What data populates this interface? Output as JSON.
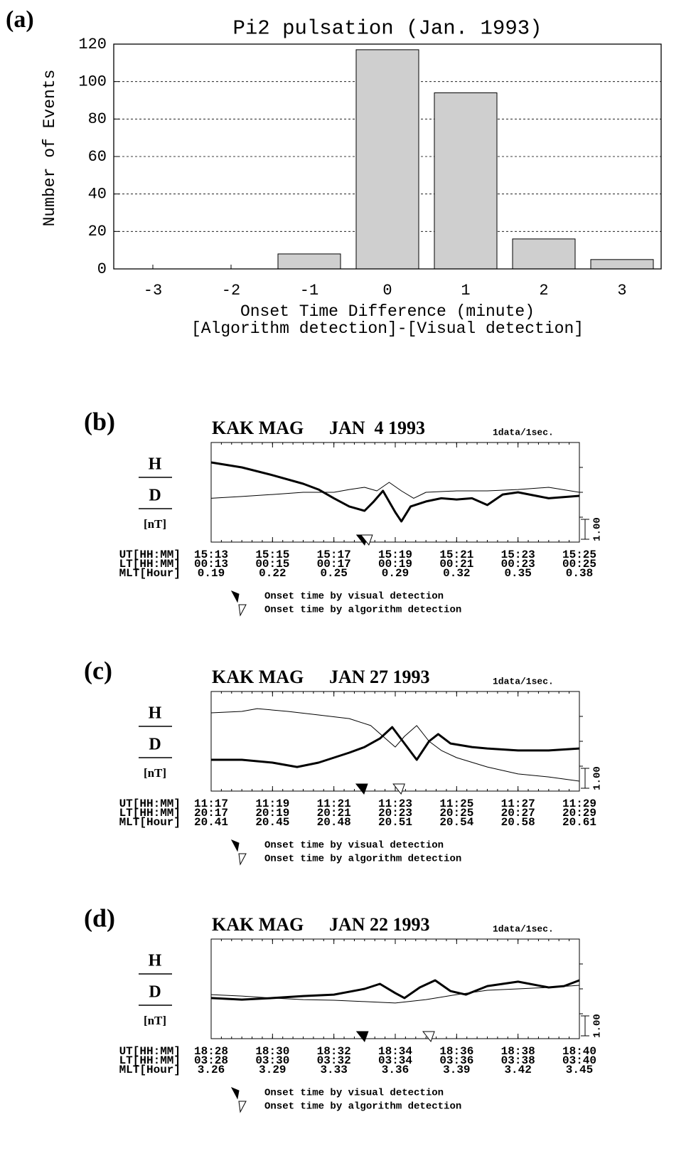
{
  "chart_data": [
    {
      "type": "bar",
      "panel_label": "(a)",
      "title": "Pi2 pulsation (Jan. 1993)",
      "ylabel": "Number of Events",
      "xlabel": [
        "Onset Time Difference (minute)",
        "[Algorithm detection]-[Visual detection]"
      ],
      "categories": [
        -3,
        -2,
        -1,
        0,
        1,
        2,
        3
      ],
      "values": [
        0,
        0,
        8,
        117,
        94,
        16,
        5
      ],
      "color": "#cfcfcf",
      "ylim": [
        0,
        120
      ],
      "yticks": [
        0,
        20,
        40,
        60,
        80,
        100,
        120
      ],
      "grid": true
    },
    {
      "type": "line",
      "panel_label": "(b)",
      "station": "KAK MAG",
      "date": "JAN  4 1993",
      "rate": "1data/1sec.",
      "unit": "[nT]",
      "xlim": [
        0,
        12
      ],
      "ylim": [
        0,
        5
      ],
      "xticks": [
        0,
        2,
        4,
        6,
        8,
        10,
        12
      ],
      "scale_bar": {
        "value": 1,
        "label": "1.00"
      },
      "series": [
        {
          "name": "H",
          "color": "#000000",
          "width": 3,
          "x": [
            0,
            1,
            2,
            3,
            3.5,
            4,
            4.5,
            5,
            5.3,
            5.6,
            6,
            6.2,
            6.5,
            7,
            7.5,
            8,
            8.5,
            9,
            9.5,
            10,
            11,
            12
          ],
          "values": [
            4.0,
            3.75,
            3.36,
            2.93,
            2.64,
            2.2,
            1.79,
            1.57,
            2.04,
            2.57,
            1.5,
            1.04,
            1.79,
            2.04,
            2.2,
            2.14,
            2.2,
            1.86,
            2.39,
            2.5,
            2.2,
            2.32
          ]
        },
        {
          "name": "D",
          "color": "#000000",
          "width": 1,
          "x": [
            0,
            1,
            2,
            3,
            4,
            4.5,
            5,
            5.4,
            5.8,
            6.2,
            6.6,
            7,
            8,
            9,
            10,
            11,
            12
          ],
          "values": [
            2.2,
            2.29,
            2.39,
            2.5,
            2.5,
            2.64,
            2.75,
            2.57,
            3.0,
            2.57,
            2.2,
            2.5,
            2.57,
            2.57,
            2.64,
            2.75,
            2.5
          ]
        }
      ],
      "time_rows": [
        {
          "name": "UT[HH:MM]",
          "labels": [
            "15:13",
            "15:15",
            "15:17",
            "15:19",
            "15:21",
            "15:23",
            "15:25"
          ]
        },
        {
          "name": "LT[HH:MM]",
          "labels": [
            "00:13",
            "00:15",
            "00:17",
            "00:19",
            "00:21",
            "00:23",
            "00:25"
          ]
        },
        {
          "name": "MLT[Hour]",
          "labels": [
            0.19,
            0.22,
            0.25,
            0.29,
            0.32,
            0.35,
            0.38
          ]
        }
      ],
      "markers": [
        {
          "name": "Onset time by visual detection",
          "x": 4.93,
          "style": "filled"
        },
        {
          "name": "Onset time by algorithm detection",
          "x": 5.07,
          "style": "open"
        }
      ]
    },
    {
      "type": "line",
      "panel_label": "(c)",
      "station": "KAK MAG",
      "date": "JAN 27 1993",
      "rate": "1data/1sec.",
      "unit": "[nT]",
      "xlim": [
        0,
        12
      ],
      "ylim": [
        0,
        5
      ],
      "xticks": [
        0,
        2,
        4,
        6,
        8,
        10,
        12
      ],
      "scale_bar": {
        "value": 1,
        "label": "1.00"
      },
      "series": [
        {
          "name": "H",
          "color": "#000000",
          "width": 3,
          "x": [
            0,
            1,
            2,
            2.8,
            3.5,
            4,
            4.5,
            5,
            5.5,
            5.9,
            6.3,
            6.7,
            7.1,
            7.4,
            7.8,
            8.5,
            9,
            10,
            11,
            12
          ],
          "values": [
            1.57,
            1.57,
            1.43,
            1.21,
            1.43,
            1.68,
            1.93,
            2.21,
            2.64,
            3.21,
            2.39,
            1.57,
            2.5,
            2.86,
            2.39,
            2.21,
            2.14,
            2.04,
            2.04,
            2.14
          ]
        },
        {
          "name": "D",
          "color": "#000000",
          "width": 1,
          "x": [
            0,
            1,
            1.5,
            2.5,
            3.5,
            4.5,
            5.2,
            5.6,
            6.0,
            6.3,
            6.7,
            7.1,
            7.5,
            8,
            9,
            10,
            11,
            12
          ],
          "values": [
            3.93,
            4.0,
            4.14,
            4.0,
            3.82,
            3.64,
            3.29,
            2.75,
            2.21,
            2.75,
            3.29,
            2.5,
            2.04,
            1.68,
            1.21,
            0.86,
            0.71,
            0.5
          ]
        }
      ],
      "time_rows": [
        {
          "name": "UT[HH:MM]",
          "labels": [
            "11:17",
            "11:19",
            "11:21",
            "11:23",
            "11:25",
            "11:27",
            "11:29"
          ]
        },
        {
          "name": "LT[HH:MM]",
          "labels": [
            "20:17",
            "20:19",
            "20:21",
            "20:23",
            "20:25",
            "20:27",
            "20:29"
          ]
        },
        {
          "name": "MLT[Hour]",
          "labels": [
            20.41,
            20.45,
            20.48,
            20.51,
            20.54,
            20.58,
            20.61
          ]
        }
      ],
      "markers": [
        {
          "name": "Onset time by visual detection",
          "x": 4.91,
          "style": "filled"
        },
        {
          "name": "Onset time by algorithm detection",
          "x": 6.12,
          "style": "open"
        }
      ]
    },
    {
      "type": "line",
      "panel_label": "(d)",
      "station": "KAK MAG",
      "date": "JAN 22 1993",
      "rate": "1data/1sec.",
      "unit": "[nT]",
      "xlim": [
        0,
        12
      ],
      "ylim": [
        0,
        5
      ],
      "xticks": [
        0,
        2,
        4,
        6,
        8,
        10,
        12
      ],
      "scale_bar": {
        "value": 1,
        "label": "1.00"
      },
      "series": [
        {
          "name": "H",
          "color": "#000000",
          "width": 3,
          "x": [
            0,
            1,
            2,
            3,
            4,
            5,
            5.5,
            6.0,
            6.3,
            6.8,
            7.3,
            7.8,
            8.3,
            9,
            10,
            11,
            11.5,
            12
          ],
          "values": [
            2.04,
            1.96,
            2.04,
            2.14,
            2.21,
            2.5,
            2.75,
            2.29,
            2.04,
            2.57,
            2.93,
            2.39,
            2.21,
            2.64,
            2.86,
            2.57,
            2.64,
            2.93
          ]
        },
        {
          "name": "D",
          "color": "#000000",
          "width": 1,
          "x": [
            0,
            1,
            2,
            3,
            4,
            5,
            6,
            7,
            8,
            9,
            10,
            11,
            12
          ],
          "values": [
            2.21,
            2.14,
            2.04,
            1.96,
            1.93,
            1.86,
            1.79,
            1.96,
            2.21,
            2.43,
            2.5,
            2.57,
            2.68
          ]
        }
      ],
      "time_rows": [
        {
          "name": "UT[HH:MM]",
          "labels": [
            "18:28",
            "18:30",
            "18:32",
            "18:34",
            "18:36",
            "18:38",
            "18:40"
          ]
        },
        {
          "name": "LT[HH:MM]",
          "labels": [
            "03:28",
            "03:30",
            "03:32",
            "03:34",
            "03:36",
            "03:38",
            "03:40"
          ]
        },
        {
          "name": "MLT[Hour]",
          "labels": [
            3.26,
            3.29,
            3.33,
            3.36,
            3.39,
            3.42,
            3.45
          ]
        }
      ],
      "markers": [
        {
          "name": "Onset time by visual detection",
          "x": 4.93,
          "style": "filled"
        },
        {
          "name": "Onset time by algorithm detection",
          "x": 7.09,
          "style": "open"
        }
      ]
    }
  ]
}
